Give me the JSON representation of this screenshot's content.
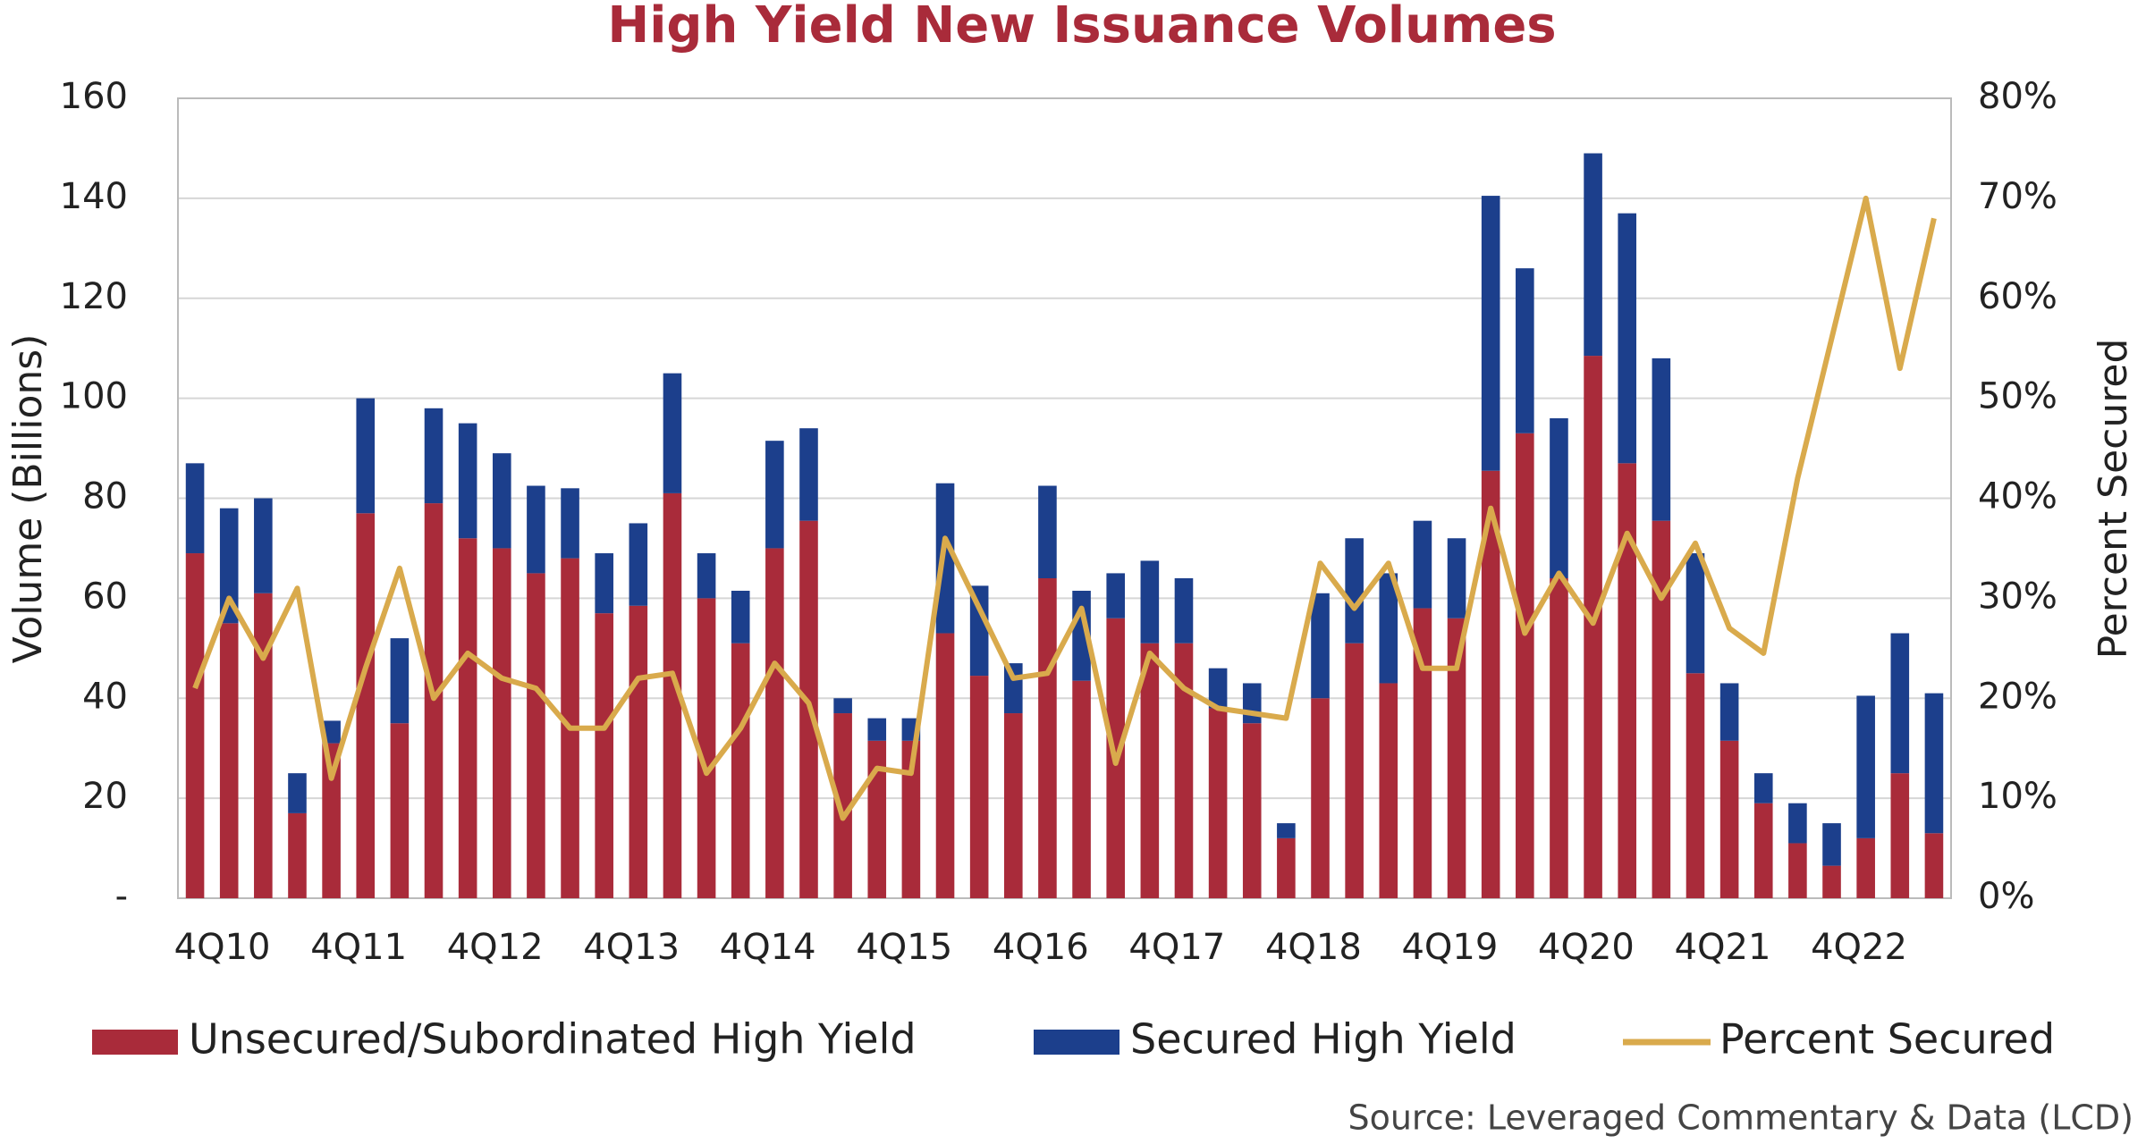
{
  "chart_data": {
    "type": "bar",
    "stacked": true,
    "title": "High Yield New Issuance Volumes",
    "y_label": "Volume (Billions)",
    "y2_label": "Percent Secured",
    "source": "Source: Leveraged Commentary & Data (LCD)",
    "categories": [
      "4Q10",
      null,
      null,
      null,
      "4Q11",
      null,
      null,
      null,
      "4Q12",
      null,
      null,
      null,
      "4Q13",
      null,
      null,
      null,
      "4Q14",
      null,
      null,
      null,
      "4Q15",
      null,
      null,
      null,
      "4Q16",
      null,
      null,
      null,
      "4Q17",
      null,
      null,
      null,
      "4Q18",
      null,
      null,
      null,
      "4Q19",
      null,
      null,
      null,
      "4Q20",
      null,
      null,
      null,
      "4Q21",
      null,
      null,
      null,
      "4Q22",
      null,
      null,
      null
    ],
    "series": [
      {
        "name": "Unsecured/Subordinated High Yield",
        "color": "#a92b3a",
        "type": "bar",
        "values": [
          69,
          55,
          61,
          17,
          31,
          77,
          35,
          79,
          72,
          70,
          65,
          68,
          57,
          58.5,
          81,
          60,
          51,
          70,
          75.5,
          37,
          31.5,
          31.5,
          53,
          44.5,
          37,
          64,
          43.5,
          56,
          51,
          51,
          38,
          35,
          12,
          40,
          51,
          43,
          58,
          56,
          85.5,
          93,
          64,
          108.5,
          87,
          75.5,
          45,
          31.5,
          19,
          11,
          6.5,
          12,
          25,
          13
        ]
      },
      {
        "name": "Secured High Yield",
        "color": "#1c3f8c",
        "type": "bar",
        "values": [
          18,
          23,
          19,
          8,
          4.5,
          23,
          17,
          19,
          23,
          19,
          17.5,
          14,
          12,
          16.5,
          24,
          9,
          10.5,
          21.5,
          18.5,
          3,
          4.5,
          4.5,
          30,
          18,
          10,
          18.5,
          18,
          9,
          16.5,
          13,
          8,
          8,
          3,
          21,
          21,
          22,
          17.5,
          16,
          55,
          33,
          32,
          40.5,
          50,
          32.5,
          24,
          11.5,
          6,
          8,
          8.5,
          28.5,
          28,
          28
        ]
      },
      {
        "name": "Percent Secured",
        "color": "#d9aa4c",
        "type": "line",
        "axis": "y2",
        "values": [
          21,
          30,
          24,
          31,
          12,
          23,
          33,
          20,
          24.5,
          22,
          21,
          17,
          17,
          22,
          22.5,
          12.5,
          17,
          23.5,
          19.5,
          8,
          13,
          12.5,
          36,
          29,
          22,
          22.5,
          29,
          13.5,
          24.5,
          21,
          19,
          18.5,
          18,
          33.5,
          29,
          33.5,
          23,
          23,
          39,
          26.5,
          32.5,
          27.5,
          36.5,
          30,
          35.5,
          27,
          24.5,
          42,
          56,
          70,
          53,
          68
        ]
      }
    ],
    "ylim": [
      0,
      160
    ],
    "yticks": [
      {
        "value": 0,
        "label": "-"
      },
      20,
      40,
      60,
      80,
      100,
      120,
      140,
      160
    ],
    "y2lim": [
      0,
      80
    ],
    "y2ticks": [
      {
        "value": 0,
        "label": "0%"
      },
      {
        "value": 10,
        "label": "10%"
      },
      {
        "value": 20,
        "label": "20%"
      },
      {
        "value": 30,
        "label": "30%"
      },
      {
        "value": 40,
        "label": "40%"
      },
      {
        "value": 50,
        "label": "50%"
      },
      {
        "value": 60,
        "label": "60%"
      },
      {
        "value": 70,
        "label": "70%"
      },
      {
        "value": 80,
        "label": "80%"
      }
    ],
    "grid": true,
    "legend": "bottom"
  }
}
